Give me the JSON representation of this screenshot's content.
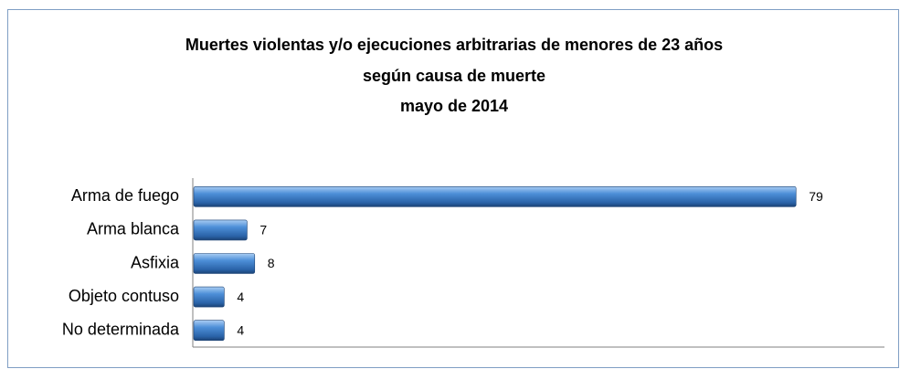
{
  "chart_data": {
    "type": "barh",
    "title": [
      "Muertes violentas y/o ejecuciones arbitrarias de menores de 23 años",
      "según causa de muerte",
      "mayo de 2014"
    ],
    "categories": [
      "Arma de fuego",
      "Arma blanca",
      "Asfixia",
      "Objeto contuso",
      "No determinada"
    ],
    "values": [
      79,
      7,
      8,
      4,
      4
    ],
    "color": "#3a78c2",
    "xlim": [
      0,
      90
    ]
  }
}
